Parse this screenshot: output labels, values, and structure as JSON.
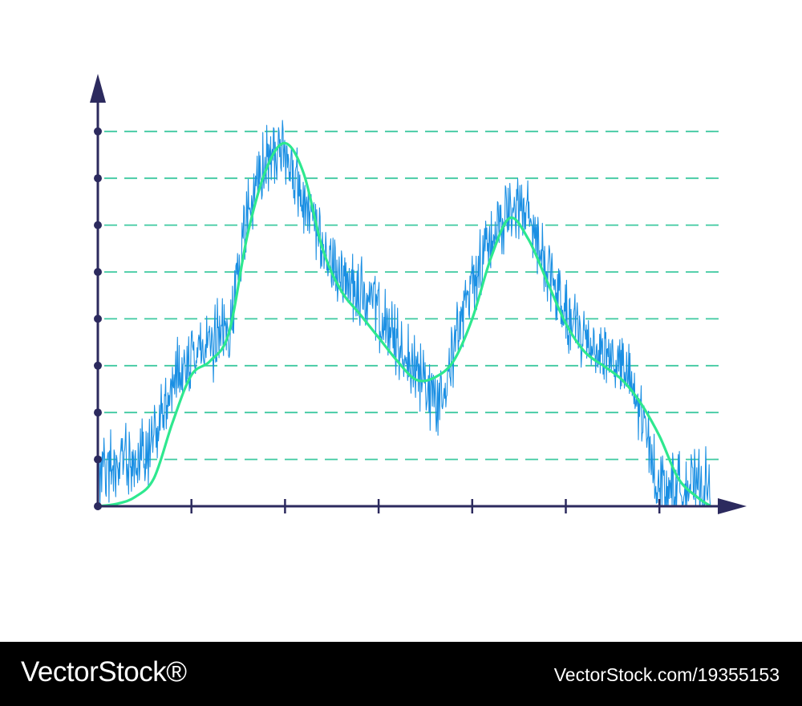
{
  "chart_data": {
    "type": "line",
    "title": "",
    "xlabel": "",
    "ylabel": "",
    "xlim": [
      0,
      6.55
    ],
    "ylim": [
      0,
      8
    ],
    "x_ticks": [
      0,
      1,
      2,
      3,
      4,
      5,
      6
    ],
    "y_ticks": [
      0,
      1,
      2,
      3,
      4,
      5,
      6,
      7,
      8
    ],
    "grid": "horizontal-dashed",
    "legend": "none",
    "colors": {
      "axis": "#2c2a5e",
      "noisy": "#1a8fe3",
      "smooth": "#2ee88f",
      "grid": "#3ec9a0"
    },
    "series": [
      {
        "style": "noisy-band",
        "x": [
          0,
          0.2,
          0.4,
          0.6,
          0.8,
          1.0,
          1.2,
          1.4,
          1.6,
          1.8,
          2.0,
          2.2,
          2.4,
          2.6,
          2.8,
          3.0,
          3.2,
          3.4,
          3.6,
          3.8,
          4.0,
          4.2,
          4.4,
          4.6,
          4.8,
          5.0,
          5.2,
          5.4,
          5.6,
          5.8,
          6.0,
          6.2,
          6.4,
          6.55
        ],
        "y": [
          0.6,
          0.9,
          1.0,
          1.3,
          2.7,
          3.3,
          3.4,
          3.8,
          6.2,
          7.4,
          7.6,
          6.5,
          5.4,
          4.9,
          4.6,
          4.1,
          3.4,
          3.0,
          2.2,
          3.3,
          4.8,
          5.8,
          6.3,
          6.2,
          5.1,
          4.0,
          3.6,
          3.3,
          3.0,
          2.0,
          0.4,
          0.4,
          0.4,
          0.4
        ]
      },
      {
        "style": "smooth",
        "x": [
          0,
          0.2,
          0.4,
          0.6,
          0.8,
          1.0,
          1.2,
          1.4,
          1.6,
          1.8,
          2.0,
          2.2,
          2.4,
          2.6,
          2.8,
          3.0,
          3.2,
          3.4,
          3.6,
          3.8,
          4.0,
          4.2,
          4.4,
          4.6,
          4.8,
          5.0,
          5.2,
          5.4,
          5.6,
          5.8,
          6.0,
          6.2,
          6.4,
          6.55
        ],
        "y": [
          0.0,
          0.05,
          0.2,
          0.6,
          1.8,
          2.8,
          3.1,
          3.7,
          5.8,
          7.2,
          7.75,
          7.1,
          5.5,
          4.6,
          4.1,
          3.6,
          3.1,
          2.7,
          2.75,
          3.1,
          4.0,
          5.3,
          6.15,
          5.7,
          4.8,
          3.9,
          3.3,
          3.0,
          2.7,
          2.2,
          1.5,
          0.6,
          0.2,
          0.0
        ]
      }
    ]
  },
  "watermark": {
    "logo": "VectorStock®",
    "url": "VectorStock.com/19355153"
  }
}
